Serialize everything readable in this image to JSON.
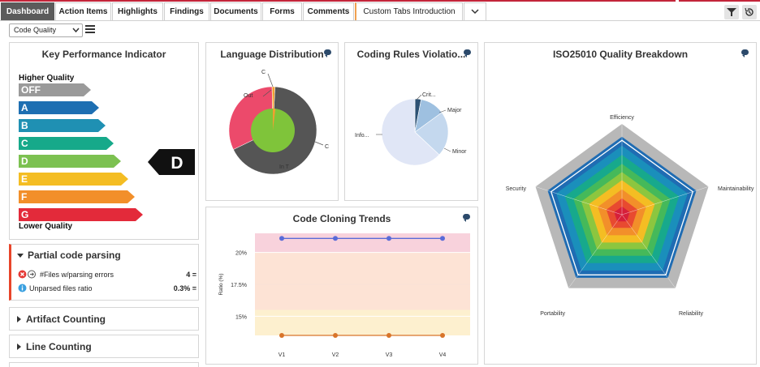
{
  "tabs": [
    {
      "label": "Dashboard",
      "active": true
    },
    {
      "label": "Action Items"
    },
    {
      "label": "Highlights"
    },
    {
      "label": "Findings"
    },
    {
      "label": "Documents"
    },
    {
      "label": "Forms"
    },
    {
      "label": "Comments"
    },
    {
      "label": "Custom Tabs Introduction"
    }
  ],
  "toolbar": {
    "filter_icon": "filter-icon",
    "history_icon": "history-icon"
  },
  "view_select": {
    "value": "Code Quality"
  },
  "kpi": {
    "title": "Key Performance Indicator",
    "higher_label": "Higher Quality",
    "lower_label": "Lower Quality",
    "bands": [
      {
        "label": "OFF",
        "color": "#9a9a9a"
      },
      {
        "label": "A",
        "color": "#1e6fb2"
      },
      {
        "label": "B",
        "color": "#1f90b3"
      },
      {
        "label": "C",
        "color": "#16a98a"
      },
      {
        "label": "D",
        "color": "#7cc151"
      },
      {
        "label": "E",
        "color": "#f4bd23"
      },
      {
        "label": "F",
        "color": "#f28f2a"
      },
      {
        "label": "G",
        "color": "#e32a3a"
      }
    ],
    "current_grade": "D"
  },
  "partial_parsing": {
    "title": "Partial code parsing",
    "rows": [
      {
        "label": "#Files w/parsing errors",
        "value": "4 ="
      },
      {
        "label": "Unparsed files ratio",
        "value": "0.3% ="
      }
    ]
  },
  "collapsed_sections": [
    "Artifact Counting",
    "Line Counting"
  ],
  "language_distribution": {
    "title": "Language Distribution",
    "labels": [
      "C",
      "Out",
      "C",
      "In T"
    ]
  },
  "coding_rules": {
    "title": "Coding Rules Violatio...",
    "labels": [
      "Crit...",
      "Major",
      "Minor",
      "Info..."
    ]
  },
  "iso": {
    "title": "ISO25010 Quality Breakdown",
    "axes": [
      "Efficiency",
      "Maintainability",
      "Reliability",
      "Portability",
      "Security"
    ]
  },
  "cloning": {
    "title": "Code Cloning Trends",
    "ylabel": "Ratio (%)",
    "yticks": [
      "20%",
      "17.5%",
      "15%"
    ]
  },
  "chart_data": [
    {
      "type": "pie",
      "title": "Language Distribution",
      "labels": [
        "C",
        "Out",
        "C",
        "In T"
      ],
      "values": [
        63,
        30,
        1,
        6
      ],
      "colors": [
        "#555555",
        "#ec4a6b",
        "#f0a030",
        "#7fc43a"
      ]
    },
    {
      "type": "pie",
      "title": "Coding Rules Violatio...",
      "labels": [
        "Crit...",
        "Major",
        "Minor",
        "Info..."
      ],
      "values": [
        3,
        12,
        22,
        63
      ],
      "colors": [
        "#2d5274",
        "#9ec0e0",
        "#c4d8ee",
        "#e0e6f6"
      ]
    },
    {
      "type": "line",
      "title": "Code Cloning Trends",
      "categories": [
        "V1",
        "V2",
        "V3",
        "V4"
      ],
      "ylabel": "Ratio (%)",
      "ylim": [
        13.5,
        21.5
      ],
      "series": [
        {
          "values": [
            21.1,
            21.1,
            21.1,
            21.1
          ],
          "color": "#5a6bd8"
        },
        {
          "values": [
            13.5,
            13.5,
            13.5,
            13.5
          ],
          "color": "#d8742a"
        }
      ]
    }
  ]
}
